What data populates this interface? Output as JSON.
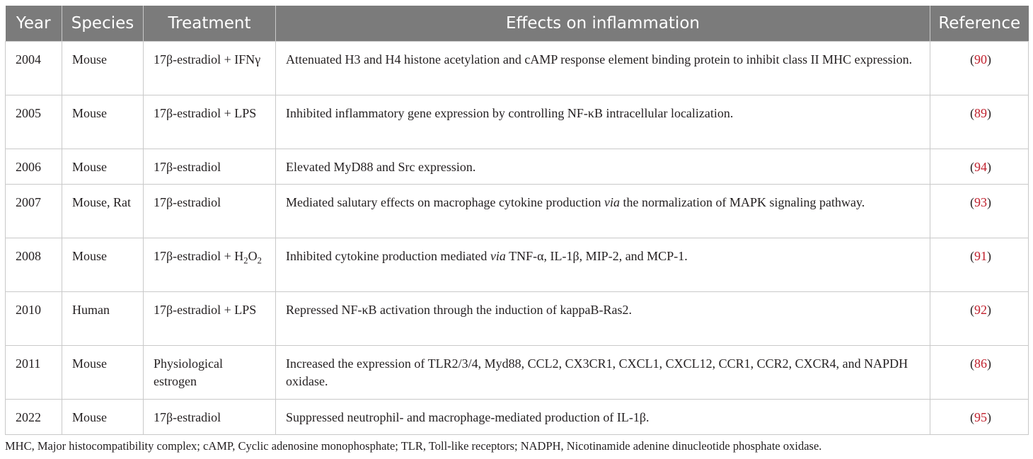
{
  "table": {
    "headers": {
      "year": "Year",
      "species": "Species",
      "treatment": "Treatment",
      "effects": "Effects on inflammation",
      "reference": "Reference"
    },
    "rows": [
      {
        "year": "2004",
        "species": "Mouse",
        "treatment": "17β-estradiol + IFNγ",
        "effects": "Attenuated H3 and H4 histone acetylation and cAMP response element binding protein to inhibit class II MHC expression.",
        "reference": "90"
      },
      {
        "year": "2005",
        "species": "Mouse",
        "treatment": "17β-estradiol + LPS",
        "effects": "Inhibited inflammatory gene expression by controlling NF-κB intracellular localization.",
        "reference": "89"
      },
      {
        "year": "2006",
        "species": "Mouse",
        "treatment": "17β-estradiol",
        "effects": "Elevated MyD88 and Src expression.",
        "reference": "94"
      },
      {
        "year": "2007",
        "species": "Mouse, Rat",
        "treatment": "17β-estradiol",
        "effects_before": "Mediated salutary effects on macrophage cytokine production ",
        "effects_italic": "via",
        "effects_after": " the normalization of MAPK signaling pathway.",
        "reference": "93"
      },
      {
        "year": "2008",
        "species": "Mouse",
        "treatment_prefix": "17β-estradiol + H",
        "treatment_sub1": "2",
        "treatment_mid": "O",
        "treatment_sub2": "2",
        "effects_before": "Inhibited cytokine production mediated ",
        "effects_italic": "via",
        "effects_after": " TNF-α, IL-1β, MIP-2, and MCP-1.",
        "reference": "91"
      },
      {
        "year": "2010",
        "species": "Human",
        "treatment": "17β-estradiol + LPS",
        "effects": "Repressed NF-κB activation through the induction of kappaB-Ras2.",
        "reference": "92"
      },
      {
        "year": "2011",
        "species": "Mouse",
        "treatment": "Physiological estrogen",
        "effects": "Increased the expression of TLR2/3/4, Myd88, CCL2, CX3CR1, CXCL1, CXCL12, CCR1, CCR2, CXCR4, and NAPDH oxidase.",
        "reference": "86"
      },
      {
        "year": "2022",
        "species": "Mouse",
        "treatment": "17β-estradiol",
        "effects": "Suppressed neutrophil- and macrophage-mediated production of IL-1β.",
        "reference": "95"
      }
    ]
  },
  "footnote": "MHC, Major histocompatibility complex; cAMP, Cyclic adenosine monophosphate; TLR, Toll-like receptors; NADPH, Nicotinamide adenine dinucleotide phosphate oxidase.",
  "colors": {
    "header_bg": "#7b7b7b",
    "reference_link": "#c0202d",
    "grid": "#c9c9c9"
  }
}
